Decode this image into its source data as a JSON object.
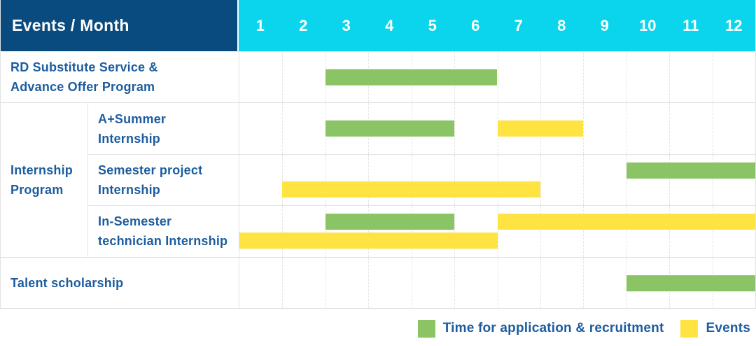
{
  "title_corner": "Events / Month",
  "months": [
    "1",
    "2",
    "3",
    "4",
    "5",
    "6",
    "7",
    "8",
    "9",
    "10",
    "11",
    "12"
  ],
  "colors": {
    "header_bg": "#0A4B7F",
    "months_bg": "#0AD5EC",
    "application": "#8AC464",
    "events": "#FFE342",
    "label_text": "#1C5C9E",
    "grid_line": "#E2E2E2",
    "header_text": "#FFFFFF"
  },
  "group_label": "Internship\nProgram",
  "rows": [
    {
      "label": "RD Substitute Service &\nAdvance Offer Program",
      "indent": false,
      "lanes": 1,
      "bars": [
        {
          "series": "application",
          "start_month": 3,
          "end_month": 6,
          "lane": 0
        }
      ]
    },
    {
      "label": "A+Summer\nInternship",
      "indent": true,
      "lanes": 1,
      "bars": [
        {
          "series": "application",
          "start_month": 3,
          "end_month": 5,
          "lane": 0
        },
        {
          "series": "events",
          "start_month": 7,
          "end_month": 8,
          "lane": 0
        }
      ]
    },
    {
      "label": "Semester project\nInternship",
      "indent": true,
      "lanes": 2,
      "bars": [
        {
          "series": "application",
          "start_month": 10,
          "end_month": 12,
          "lane": 0
        },
        {
          "series": "events",
          "start_month": 2,
          "end_month": 7,
          "lane": 1
        }
      ]
    },
    {
      "label": "In-Semester\ntechnician Internship",
      "indent": true,
      "lanes": 2,
      "bars": [
        {
          "series": "application",
          "start_month": 3,
          "end_month": 5,
          "lane": 0
        },
        {
          "series": "events",
          "start_month": 7,
          "end_month": 12,
          "lane": 0
        },
        {
          "series": "events",
          "start_month": 1,
          "end_month": 6,
          "lane": 1
        }
      ]
    },
    {
      "label": "Talent scholarship",
      "indent": false,
      "lanes": 1,
      "bars": [
        {
          "series": "application",
          "start_month": 10,
          "end_month": 12,
          "lane": 0
        }
      ]
    }
  ],
  "legend": {
    "items": [
      {
        "series": "application",
        "label": "Time for application & recruitment",
        "swatch_color": "#8AC464"
      },
      {
        "series": "events",
        "label": "Events",
        "swatch_color": "#FFE342"
      }
    ]
  },
  "chart_data": {
    "type": "gantt",
    "title": "Events / Month",
    "x_axis": {
      "label": "Month",
      "ticks": [
        1,
        2,
        3,
        4,
        5,
        6,
        7,
        8,
        9,
        10,
        11,
        12
      ],
      "range": [
        1,
        12
      ]
    },
    "grid": true,
    "legend_position": "bottom-right",
    "series_legend": [
      {
        "name": "Time for application & recruitment",
        "color": "#8AC464"
      },
      {
        "name": "Events",
        "color": "#FFE342"
      }
    ],
    "tasks": [
      {
        "group": "",
        "name": "RD Substitute Service & Advance Offer Program",
        "spans": [
          {
            "series": "Time for application & recruitment",
            "start_month": 3,
            "end_month": 6
          }
        ]
      },
      {
        "group": "Internship Program",
        "name": "A+Summer Internship",
        "spans": [
          {
            "series": "Time for application & recruitment",
            "start_month": 3,
            "end_month": 5
          },
          {
            "series": "Events",
            "start_month": 7,
            "end_month": 8
          }
        ]
      },
      {
        "group": "Internship Program",
        "name": "Semester project Internship",
        "spans": [
          {
            "series": "Time for application & recruitment",
            "start_month": 10,
            "end_month": 12
          },
          {
            "series": "Events",
            "start_month": 2,
            "end_month": 7
          }
        ]
      },
      {
        "group": "Internship Program",
        "name": "In-Semester technician Internship",
        "spans": [
          {
            "series": "Time for application & recruitment",
            "start_month": 3,
            "end_month": 5
          },
          {
            "series": "Events",
            "start_month": 7,
            "end_month": 12
          },
          {
            "series": "Events",
            "start_month": 1,
            "end_month": 6
          }
        ]
      },
      {
        "group": "",
        "name": "Talent scholarship",
        "spans": [
          {
            "series": "Time for application & recruitment",
            "start_month": 10,
            "end_month": 12
          }
        ]
      }
    ]
  }
}
